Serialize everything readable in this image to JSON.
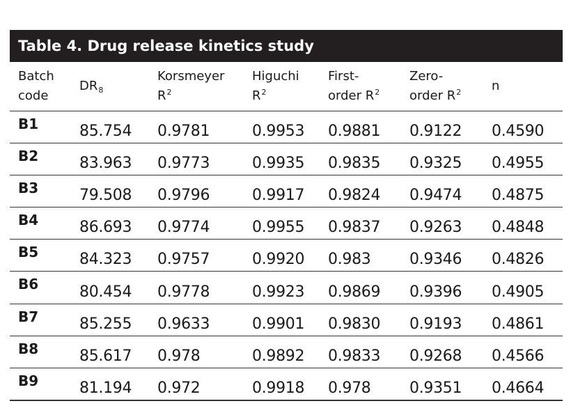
{
  "table": {
    "title": "Table 4. Drug release kinetics study",
    "headers": [
      {
        "line1": "Batch",
        "line2": "code",
        "sup": "",
        "sub": ""
      },
      {
        "line1": "",
        "line2": "DR",
        "sup": "",
        "sub": "8"
      },
      {
        "line1": "Korsmeyer",
        "line2": "R",
        "sup": "2",
        "sub": ""
      },
      {
        "line1": "Higuchi",
        "line2": "R",
        "sup": "2",
        "sub": ""
      },
      {
        "line1": "First-",
        "line2": "order R",
        "sup": "2",
        "sub": ""
      },
      {
        "line1": "Zero-",
        "line2": "order R",
        "sup": "2",
        "sub": ""
      },
      {
        "line1": "",
        "line2": "n",
        "sup": "",
        "sub": ""
      }
    ],
    "rows": [
      [
        "B1",
        "85.754",
        "0.9781",
        "0.9953",
        "0.9881",
        "0.9122",
        "0.4590"
      ],
      [
        "B2",
        "83.963",
        "0.9773",
        "0.9935",
        "0.9835",
        "0.9325",
        "0.4955"
      ],
      [
        "B3",
        "79.508",
        "0.9796",
        "0.9917",
        "0.9824",
        "0.9474",
        "0.4875"
      ],
      [
        "B4",
        "86.693",
        "0.9774",
        "0.9955",
        "0.9837",
        "0.9263",
        "0.4848"
      ],
      [
        "B5",
        "84.323",
        "0.9757",
        "0.9920",
        "0.983",
        "0.9346",
        "0.4826"
      ],
      [
        "B6",
        "80.454",
        "0.9778",
        "0.9923",
        "0.9869",
        "0.9396",
        "0.4905"
      ],
      [
        "B7",
        "85.255",
        "0.9633",
        "0.9901",
        "0.9830",
        "0.9193",
        "0.4861"
      ],
      [
        "B8",
        "85.617",
        "0.978",
        "0.9892",
        "0.9833",
        "0.9268",
        "0.4566"
      ],
      [
        "B9",
        "81.194",
        "0.972",
        "0.9918",
        "0.978",
        "0.9351",
        "0.4664"
      ]
    ]
  },
  "colors": {
    "title_bg": "#231f20",
    "title_text": "#ffffff",
    "rule": "#333333"
  }
}
